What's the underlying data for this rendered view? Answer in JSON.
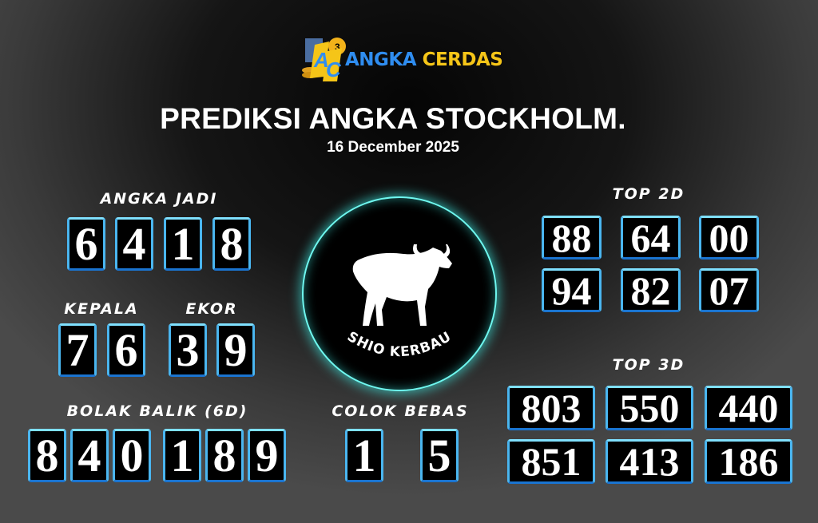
{
  "logo": {
    "word1": "ANGKA",
    "word2": "CERDAS",
    "monogram": "AC",
    "ball_number": "3",
    "colors": {
      "blue": "#2f8df0",
      "gold": "#f5c518"
    }
  },
  "title": "PREDIKSI ANGKA STOCKHOLM.",
  "date": "16 December 2025",
  "angka_jadi": {
    "label": "ANGKA JADI",
    "digits": [
      "6",
      "4",
      "1",
      "8"
    ]
  },
  "kepala": {
    "label": "KEPALA",
    "digits": [
      "7",
      "6"
    ]
  },
  "ekor": {
    "label": "EKOR",
    "digits": [
      "3",
      "9"
    ]
  },
  "bolak_balik": {
    "label": "BOLAK BALIK (6D)",
    "digits": [
      "8",
      "4",
      "0",
      "1",
      "8",
      "9"
    ]
  },
  "colok_bebas": {
    "label": "COLOK BEBAS",
    "digits": [
      "1",
      "5"
    ]
  },
  "shio": {
    "label": "SHIO KERBAU",
    "icon": "buffalo-icon",
    "glow_color": "#3ff0e8"
  },
  "top2d": {
    "label": "TOP 2D",
    "values": [
      "88",
      "64",
      "00",
      "94",
      "82",
      "07"
    ]
  },
  "top3d": {
    "label": "TOP 3D",
    "values": [
      "803",
      "550",
      "440",
      "851",
      "413",
      "186"
    ]
  },
  "box_border_color": "#2a8fe0"
}
